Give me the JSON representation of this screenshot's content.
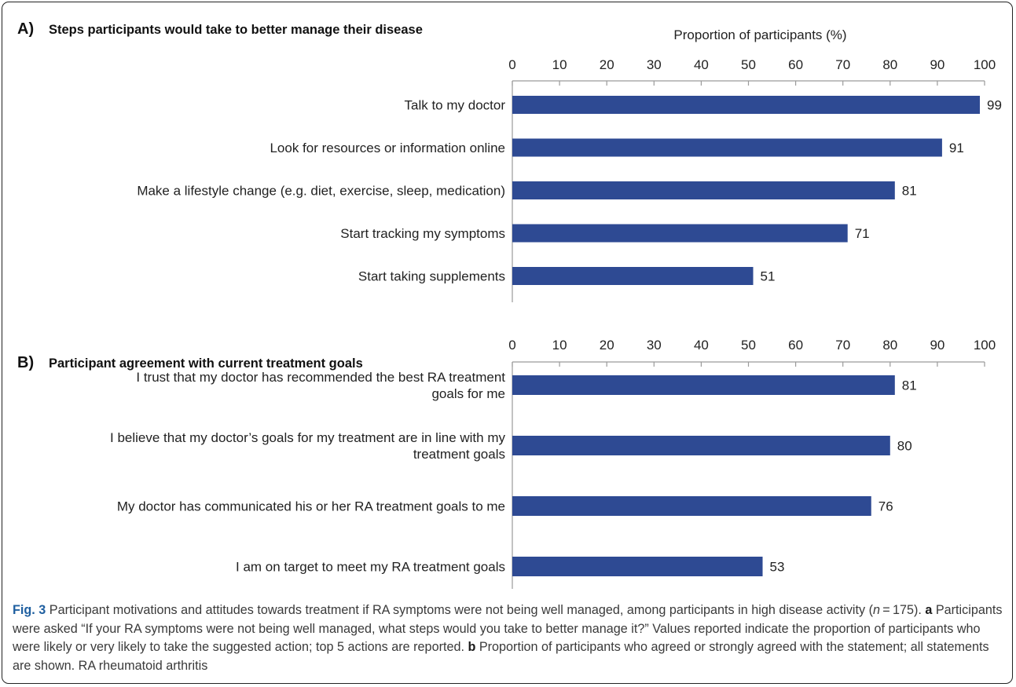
{
  "chart_data": [
    {
      "type": "bar",
      "orientation": "horizontal",
      "panel_letter": "A)",
      "title": "Steps participants would take to better manage their disease",
      "xlabel": "Proportion of participants (%)",
      "xlim": [
        0,
        100
      ],
      "ticks": [
        "0",
        "10",
        "20",
        "30",
        "40",
        "50",
        "60",
        "70",
        "80",
        "90",
        "100"
      ],
      "categories": [
        "Talk to my doctor",
        "Look for resources or information online",
        "Make a lifestyle change (e.g. diet, exercise, sleep, medication)",
        "Start tracking my symptoms",
        "Start taking supplements"
      ],
      "values": [
        99,
        91,
        81,
        71,
        51
      ],
      "bar_color": "#2e4a93",
      "grid": false
    },
    {
      "type": "bar",
      "orientation": "horizontal",
      "panel_letter": "B)",
      "title": "Participant agreement with current treatment goals",
      "xlabel": "",
      "xlim": [
        0,
        100
      ],
      "ticks": [
        "0",
        "10",
        "20",
        "30",
        "40",
        "50",
        "60",
        "70",
        "80",
        "90",
        "100"
      ],
      "categories": [
        [
          "I trust that my doctor has recommended the best RA treatment",
          "goals for me"
        ],
        [
          "I believe that my doctor’s goals for my treatment are in line with my",
          "treatment goals"
        ],
        [
          "My doctor has communicated his or her RA treatment goals to me"
        ],
        [
          "I am on target to meet my RA treatment goals"
        ]
      ],
      "values": [
        81,
        80,
        76,
        53
      ],
      "bar_color": "#2e4a93",
      "grid": false
    }
  ],
  "caption": {
    "fig_label": "Fig. 3",
    "text_1": " Participant motivations and attitudes towards treatment if RA symptoms were not being well managed, among participants in high disease activity (",
    "n_var": "n",
    "text_2": " = 175). ",
    "a_label": "a",
    "text_3": " Participants were asked “If your RA symptoms were not being well managed, what steps would you take to better manage it?” Values reported indicate the proportion of participants who were likely or very likely to take the suggested action; top 5 actions are reported. ",
    "b_label": "b",
    "text_4": " Proportion of participants who agreed or strongly agreed with the statement; all statements are shown. RA rheumatoid arthritis"
  }
}
